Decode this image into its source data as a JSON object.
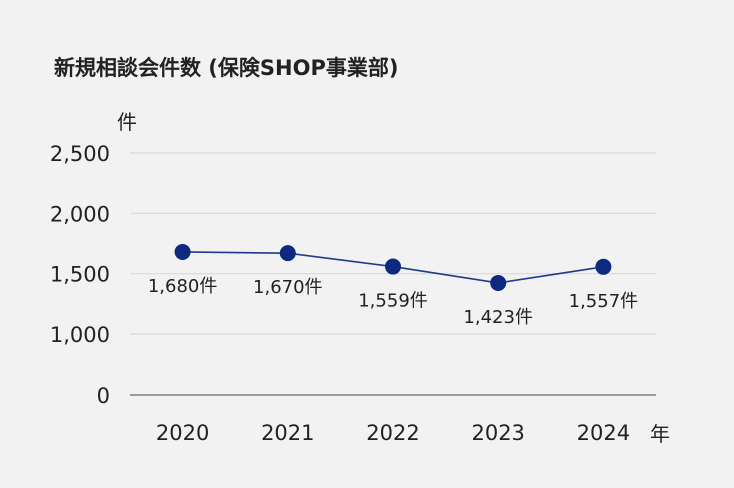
{
  "chart_data": {
    "type": "line",
    "title": "新規相談会件数 (保険SHOP事業部)",
    "ylabel": "件",
    "xlabel": "年",
    "categories": [
      "2020",
      "2021",
      "2022",
      "2023",
      "2024"
    ],
    "values": [
      1680,
      1670,
      1559,
      1423,
      1557
    ],
    "data_labels": [
      "1,680件",
      "1,670件",
      "1,559件",
      "1,423件",
      "1,557件"
    ],
    "y_ticks": [
      0,
      1000,
      1500,
      2000,
      2500
    ],
    "y_tick_labels": [
      "0",
      "1,000",
      "1,500",
      "2,000",
      "2,500"
    ],
    "ylim": [
      0,
      2500
    ],
    "y_axis_break": true,
    "grid": true,
    "legend": "none",
    "colors": {
      "line": "#1f3a8a",
      "marker": "#0d2a80",
      "grid": "#d9d9d9",
      "axis": "#808080",
      "background": "#f2f2f2"
    }
  }
}
